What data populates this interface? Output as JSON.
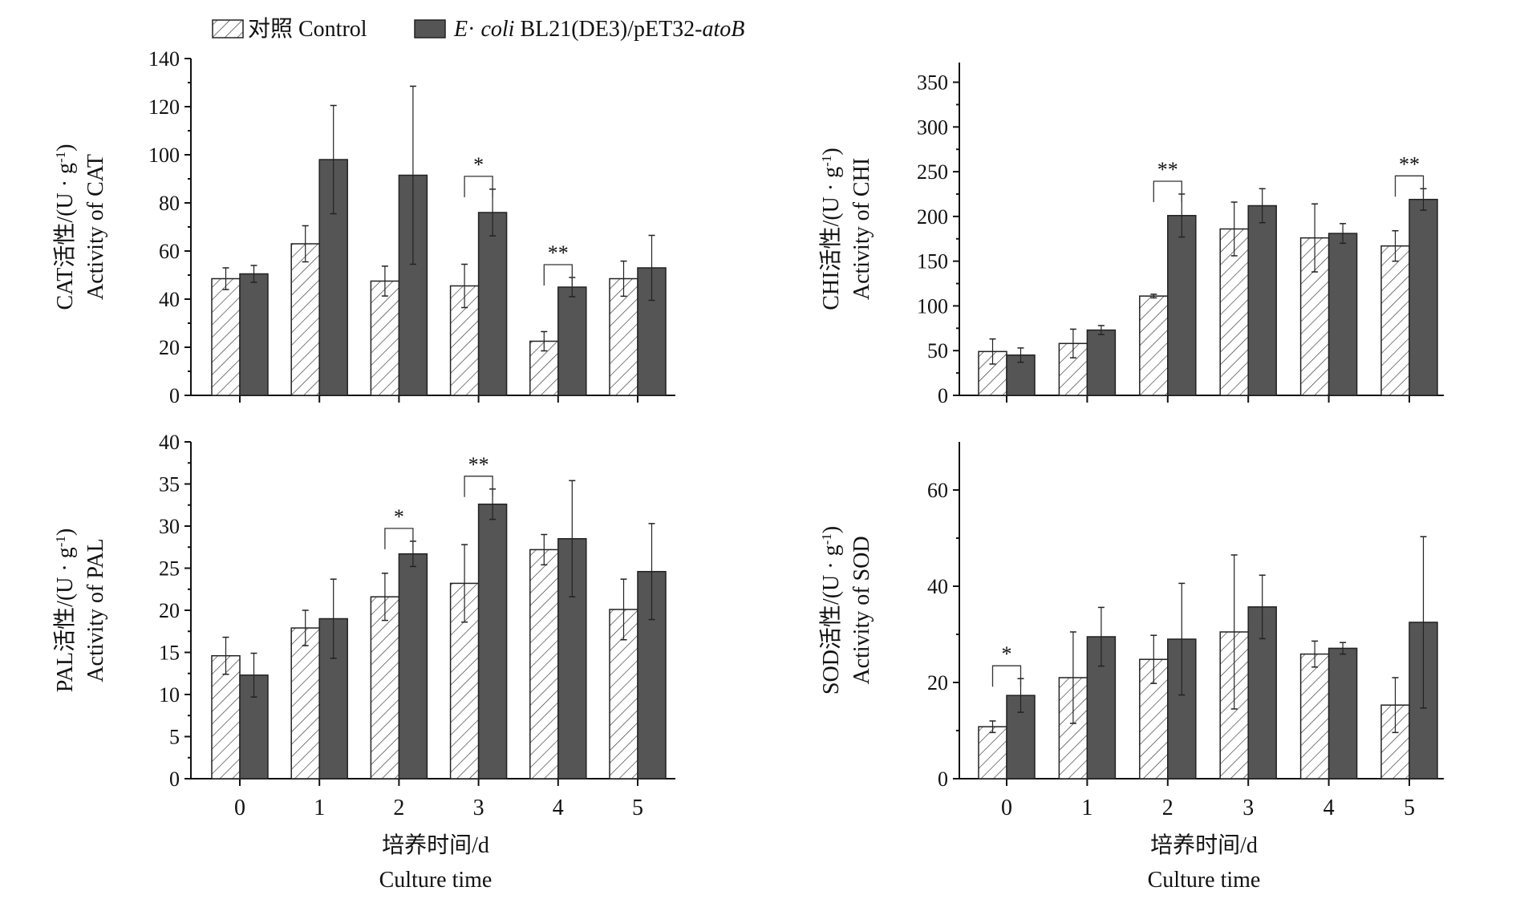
{
  "legend": {
    "control": "对照 Control",
    "treatment_italic1": "E",
    "treatment_mid": "· ",
    "treatment_italic2": "coli",
    "treatment_rest": " BL21(DE3)/pET32-",
    "treatment_italic3": "atoB"
  },
  "colors": {
    "treatment": "#555555",
    "control_fill": "#ffffff",
    "hatch": "#333333"
  },
  "x_label_cn": "培养时间/d",
  "x_label_en": "Culture time",
  "chart_data": [
    {
      "type": "bar",
      "name": "CAT",
      "ylabel_cn": "CAT活性/(U · g",
      "ylabel_sup": "-1",
      "ylabel_close": ")",
      "ylabel_en": "Activity of CAT",
      "categories": [
        "0",
        "1",
        "2",
        "3",
        "4",
        "5"
      ],
      "ylim": [
        0,
        140
      ],
      "yticks": [
        0,
        20,
        40,
        60,
        80,
        100,
        120,
        140
      ],
      "show_x_tick_labels": false,
      "series": [
        {
          "name": "对照 Control",
          "values": [
            48.5,
            63,
            47.5,
            45.5,
            22.5,
            48.5
          ],
          "errors": [
            4.5,
            7.5,
            6.2,
            9,
            4,
            7.3
          ]
        },
        {
          "name": "E. coli BL21(DE3)/pET32-atoB",
          "values": [
            50.5,
            98,
            91.5,
            76,
            45,
            53
          ],
          "errors": [
            3.5,
            22.5,
            37,
            9.7,
            4,
            13.5
          ]
        }
      ],
      "significance": [
        {
          "category": "3",
          "label": "*"
        },
        {
          "category": "4",
          "label": "**"
        }
      ]
    },
    {
      "type": "bar",
      "name": "CHI",
      "ylabel_cn": "CHI活性/(U · g",
      "ylabel_sup": "-1",
      "ylabel_close": ")",
      "ylabel_en": "Activity of CHI",
      "categories": [
        "0",
        "1",
        "2",
        "3",
        "4",
        "5"
      ],
      "ylim": [
        0,
        372
      ],
      "yticks": [
        0,
        50,
        100,
        150,
        200,
        250,
        300,
        350
      ],
      "show_x_tick_labels": false,
      "series": [
        {
          "name": "对照 Control",
          "values": [
            49,
            58,
            111,
            186,
            176,
            167
          ],
          "errors": [
            14,
            16,
            2,
            30,
            38,
            17
          ]
        },
        {
          "name": "E. coli BL21(DE3)/pET32-atoB",
          "values": [
            45,
            73,
            201,
            212,
            181,
            219
          ],
          "errors": [
            8,
            5,
            24,
            19,
            11,
            12
          ]
        }
      ],
      "significance": [
        {
          "category": "2",
          "label": "**"
        },
        {
          "category": "5",
          "label": "**"
        }
      ]
    },
    {
      "type": "bar",
      "name": "PAL",
      "ylabel_cn": "PAL活性/(U · g",
      "ylabel_sup": "-1",
      "ylabel_close": ")",
      "ylabel_en": "Activity of PAL",
      "categories": [
        "0",
        "1",
        "2",
        "3",
        "4",
        "5"
      ],
      "ylim": [
        0,
        40
      ],
      "yticks": [
        0,
        5,
        10,
        15,
        20,
        25,
        30,
        35,
        40
      ],
      "show_x_tick_labels": true,
      "series": [
        {
          "name": "对照 Control",
          "values": [
            14.6,
            17.9,
            21.6,
            23.2,
            27.2,
            20.1
          ],
          "errors": [
            2.2,
            2.1,
            2.8,
            4.6,
            1.8,
            3.6
          ]
        },
        {
          "name": "E. coli BL21(DE3)/pET32-atoB",
          "values": [
            12.3,
            19,
            26.7,
            32.6,
            28.5,
            24.6
          ],
          "errors": [
            2.6,
            4.7,
            1.5,
            1.8,
            6.9,
            5.7
          ]
        }
      ],
      "significance": [
        {
          "category": "2",
          "label": "*"
        },
        {
          "category": "3",
          "label": "**"
        }
      ]
    },
    {
      "type": "bar",
      "name": "SOD",
      "ylabel_cn": "SOD活性/(U · g",
      "ylabel_sup": "-1",
      "ylabel_close": ")",
      "ylabel_en": "Activity of SOD",
      "categories": [
        "0",
        "1",
        "2",
        "3",
        "4",
        "5"
      ],
      "ylim": [
        0,
        70
      ],
      "yticks": [
        0,
        20,
        40,
        60
      ],
      "show_x_tick_labels": true,
      "series": [
        {
          "name": "对照 Control",
          "values": [
            10.8,
            21,
            24.8,
            30.5,
            25.9,
            15.3
          ],
          "errors": [
            1.2,
            9.5,
            5,
            16,
            2.7,
            5.7
          ]
        },
        {
          "name": "E. coli BL21(DE3)/pET32-atoB",
          "values": [
            17.3,
            29.5,
            29,
            35.7,
            27.1,
            32.5
          ],
          "errors": [
            3.5,
            6.1,
            11.6,
            6.6,
            1.2,
            17.8
          ]
        }
      ],
      "significance": [
        {
          "category": "0",
          "label": "*"
        }
      ]
    }
  ]
}
